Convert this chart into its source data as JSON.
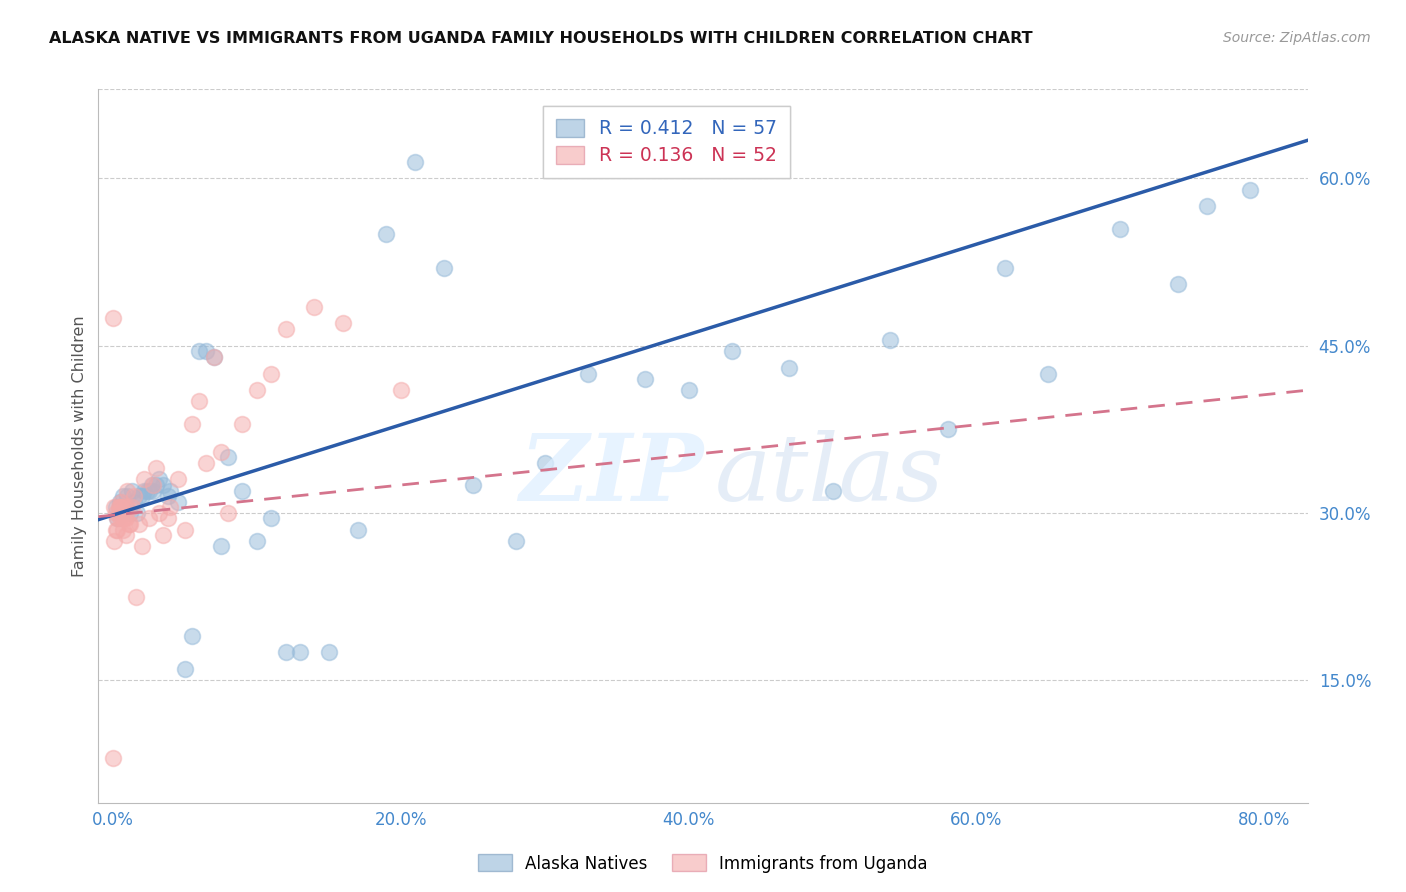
{
  "title": "ALASKA NATIVE VS IMMIGRANTS FROM UGANDA FAMILY HOUSEHOLDS WITH CHILDREN CORRELATION CHART",
  "source": "Source: ZipAtlas.com",
  "ylabel": "Family Households with Children",
  "x_ticks": [
    0.0,
    0.1,
    0.2,
    0.3,
    0.4,
    0.5,
    0.6,
    0.7,
    0.8
  ],
  "x_tick_labels": [
    "0.0%",
    "",
    "20.0%",
    "",
    "40.0%",
    "",
    "60.0%",
    "",
    "80.0%"
  ],
  "y_ticks": [
    0.15,
    0.3,
    0.45,
    0.6
  ],
  "y_tick_labels": [
    "15.0%",
    "30.0%",
    "45.0%",
    "60.0%"
  ],
  "xlim": [
    -0.01,
    0.83
  ],
  "ylim": [
    0.04,
    0.68
  ],
  "R_blue": 0.412,
  "N_blue": 57,
  "R_pink": 0.136,
  "N_pink": 52,
  "blue_color": "#93B8D8",
  "pink_color": "#F4AAAA",
  "blue_line_color": "#2B5BA8",
  "pink_line_color": "#D4748C",
  "legend_label_blue": "Alaska Natives",
  "legend_label_pink": "Immigrants from Uganda",
  "blue_x": [
    0.002,
    0.003,
    0.005,
    0.007,
    0.009,
    0.01,
    0.012,
    0.013,
    0.015,
    0.017,
    0.018,
    0.02,
    0.022,
    0.024,
    0.025,
    0.027,
    0.028,
    0.03,
    0.032,
    0.035,
    0.038,
    0.04,
    0.045,
    0.05,
    0.055,
    0.06,
    0.065,
    0.07,
    0.075,
    0.08,
    0.09,
    0.1,
    0.11,
    0.12,
    0.13,
    0.15,
    0.17,
    0.19,
    0.21,
    0.23,
    0.25,
    0.28,
    0.3,
    0.33,
    0.37,
    0.4,
    0.43,
    0.47,
    0.5,
    0.54,
    0.58,
    0.62,
    0.65,
    0.7,
    0.74,
    0.76,
    0.79
  ],
  "blue_y": [
    0.305,
    0.295,
    0.31,
    0.315,
    0.305,
    0.315,
    0.3,
    0.32,
    0.31,
    0.3,
    0.315,
    0.315,
    0.32,
    0.32,
    0.32,
    0.325,
    0.32,
    0.325,
    0.33,
    0.325,
    0.315,
    0.32,
    0.31,
    0.16,
    0.19,
    0.445,
    0.445,
    0.44,
    0.27,
    0.35,
    0.32,
    0.275,
    0.295,
    0.175,
    0.175,
    0.175,
    0.285,
    0.55,
    0.615,
    0.52,
    0.325,
    0.275,
    0.345,
    0.425,
    0.42,
    0.41,
    0.445,
    0.43,
    0.32,
    0.455,
    0.375,
    0.52,
    0.425,
    0.555,
    0.505,
    0.575,
    0.59
  ],
  "pink_x": [
    0.0,
    0.0,
    0.001,
    0.001,
    0.002,
    0.002,
    0.003,
    0.003,
    0.004,
    0.004,
    0.005,
    0.005,
    0.006,
    0.006,
    0.007,
    0.007,
    0.008,
    0.008,
    0.009,
    0.009,
    0.01,
    0.01,
    0.011,
    0.012,
    0.013,
    0.015,
    0.016,
    0.018,
    0.02,
    0.022,
    0.025,
    0.028,
    0.03,
    0.032,
    0.035,
    0.038,
    0.04,
    0.045,
    0.05,
    0.055,
    0.06,
    0.065,
    0.07,
    0.075,
    0.08,
    0.09,
    0.1,
    0.11,
    0.12,
    0.14,
    0.16,
    0.2
  ],
  "pink_y": [
    0.475,
    0.08,
    0.305,
    0.275,
    0.3,
    0.285,
    0.285,
    0.295,
    0.3,
    0.305,
    0.295,
    0.305,
    0.305,
    0.31,
    0.285,
    0.295,
    0.305,
    0.295,
    0.28,
    0.295,
    0.305,
    0.32,
    0.29,
    0.29,
    0.305,
    0.315,
    0.225,
    0.29,
    0.27,
    0.33,
    0.295,
    0.325,
    0.34,
    0.3,
    0.28,
    0.295,
    0.305,
    0.33,
    0.285,
    0.38,
    0.4,
    0.345,
    0.44,
    0.355,
    0.3,
    0.38,
    0.41,
    0.425,
    0.465,
    0.485,
    0.47,
    0.41
  ]
}
